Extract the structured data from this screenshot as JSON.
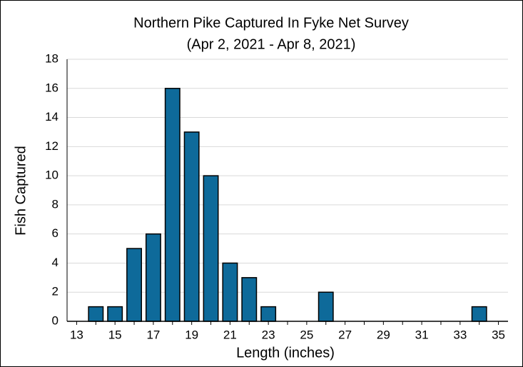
{
  "chart_data": {
    "type": "bar",
    "title": "Northern Pike Captured In Fyke Net Survey",
    "subtitle": "(Apr 2, 2021 - Apr 8, 2021)",
    "x_label": "Length (inches)",
    "y_label": "Fish Captured",
    "categories": [
      "13",
      null,
      "15",
      null,
      "17",
      null,
      "19",
      null,
      "21",
      null,
      "23",
      null,
      "25",
      null,
      "27",
      null,
      "29",
      null,
      "31",
      null,
      "33",
      null,
      "35"
    ],
    "values": [
      0,
      1,
      1,
      5,
      6,
      16,
      13,
      10,
      4,
      3,
      1,
      0,
      0,
      2,
      0,
      0,
      0,
      0,
      0,
      0,
      0,
      1,
      0
    ],
    "color": "#0e6a9a",
    "ylim": [
      0,
      18
    ],
    "yticks": [
      0,
      2,
      4,
      6,
      8,
      10,
      12,
      14,
      16,
      18
    ],
    "grid": true
  }
}
